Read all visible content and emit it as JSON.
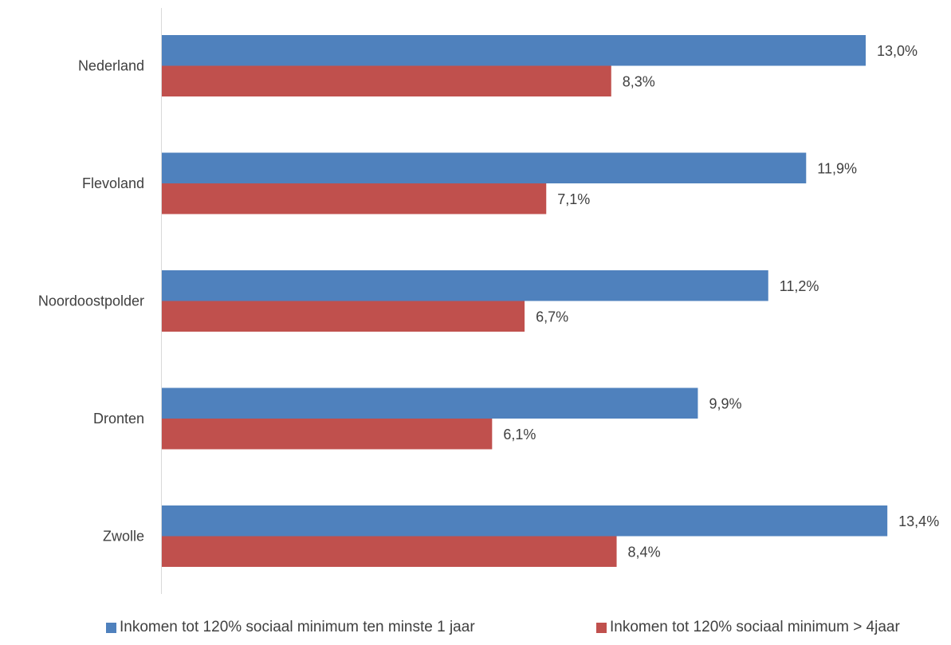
{
  "chart_data": {
    "type": "bar",
    "orientation": "horizontal",
    "categories": [
      "Nederland",
      "Flevoland",
      "Noordoostpolder",
      "Dronten",
      "Zwolle"
    ],
    "series": [
      {
        "name": "Inkomen tot 120% sociaal minimum ten minste 1 jaar",
        "color": "#4F81BD",
        "values": [
          13.0,
          11.9,
          11.2,
          9.9,
          13.4
        ],
        "labels": [
          "13,0%",
          "11,9%",
          "11,2%",
          "9,9%",
          "13,4%"
        ]
      },
      {
        "name": "Inkomen tot 120% sociaal minimum > 4jaar",
        "color": "#C0504D",
        "values": [
          8.3,
          7.1,
          6.7,
          6.1,
          8.4
        ],
        "labels": [
          "8,3%",
          "7,1%",
          "6,7%",
          "6,1%",
          "8,4%"
        ]
      }
    ],
    "title": "",
    "xlabel": "",
    "ylabel": "",
    "xlim": [
      0,
      13.4
    ],
    "grid": false,
    "legend_position": "bottom"
  }
}
